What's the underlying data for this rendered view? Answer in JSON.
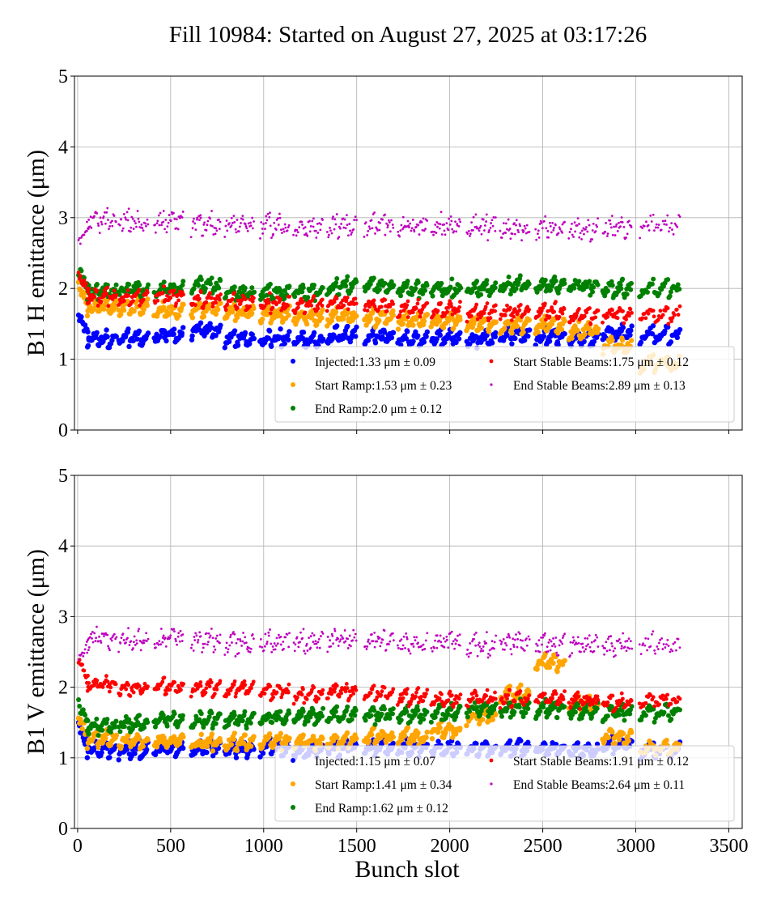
{
  "chart_data": {
    "title": "Fill 10984: Started on August 27, 2025 at 03:17:26",
    "xlabel": "Bunch slot",
    "xlim": [
      -17,
      3572
    ],
    "xticks": [
      "0",
      "500",
      "1000",
      "1500",
      "2000",
      "2500",
      "3000",
      "3500"
    ],
    "xtick_values": [
      0,
      500,
      1000,
      1500,
      2000,
      2500,
      3000,
      3500
    ],
    "grid": true,
    "train_centers": [
      130,
      300,
      490,
      690,
      870,
      1060,
      1240,
      1420,
      1620,
      1800,
      1980,
      2170,
      2350,
      2540,
      2720,
      2900,
      3130
    ],
    "panels": [
      {
        "type": "scatter",
        "ylabel": "B1 H emittance (μm)",
        "ylim": [
          0,
          5
        ],
        "yticks": [
          "0",
          "1",
          "2",
          "3",
          "4",
          "5"
        ],
        "legend_position": "lower-right",
        "series": [
          {
            "name": "Injected",
            "label": "Injected:1.33 μm ± 0.09",
            "color": "#0000ff",
            "values": [
              1.3,
              1.3,
              1.35,
              1.42,
              1.3,
              1.3,
              1.28,
              1.35,
              1.33,
              1.3,
              1.32,
              1.3,
              1.35,
              1.32,
              1.3,
              1.38,
              1.35
            ]
          },
          {
            "name": "Start Ramp",
            "label": "Start Ramp:1.53 μm ± 0.23",
            "color": "#ffa500",
            "values": [
              1.75,
              1.75,
              1.7,
              1.72,
              1.68,
              1.65,
              1.6,
              1.62,
              1.6,
              1.55,
              1.55,
              1.5,
              1.5,
              1.48,
              1.4,
              1.2,
              0.95
            ]
          },
          {
            "name": "End Ramp",
            "label": "End Ramp:2.0 μm ± 0.12",
            "color": "#008000",
            "values": [
              1.95,
              2.0,
              2.0,
              2.05,
              1.95,
              1.95,
              1.95,
              2.05,
              2.05,
              2.0,
              2.0,
              2.0,
              2.05,
              2.05,
              2.05,
              2.0,
              2.0
            ]
          },
          {
            "name": "Start Stable Beams",
            "label": "Start Stable Beams:1.75 μm ± 0.12",
            "color": "#ff0000",
            "values": [
              1.9,
              1.88,
              1.9,
              1.85,
              1.82,
              1.8,
              1.78,
              1.8,
              1.78,
              1.72,
              1.72,
              1.68,
              1.68,
              1.68,
              1.62,
              1.65,
              1.65
            ]
          },
          {
            "name": "End Stable Beams",
            "label": "End Stable Beams:2.89 μm ± 0.13",
            "color": "#bf00bf",
            "values": [
              2.95,
              2.95,
              2.95,
              2.92,
              2.92,
              2.9,
              2.85,
              2.9,
              2.9,
              2.9,
              2.9,
              2.88,
              2.85,
              2.85,
              2.85,
              2.85,
              2.9
            ]
          }
        ]
      },
      {
        "type": "scatter",
        "ylabel": "B1 V emittance (μm)",
        "ylim": [
          0,
          5
        ],
        "yticks": [
          "0",
          "1",
          "2",
          "3",
          "4",
          "5"
        ],
        "legend_position": "lower-right",
        "series": [
          {
            "name": "Injected",
            "label": "Injected:1.15 μm ± 0.07",
            "color": "#0000ff",
            "values": [
              1.13,
              1.12,
              1.15,
              1.15,
              1.13,
              1.15,
              1.12,
              1.15,
              1.15,
              1.15,
              1.15,
              1.15,
              1.15,
              1.15,
              1.12,
              1.2,
              1.12
            ]
          },
          {
            "name": "Start Ramp",
            "label": "Start Ramp:1.41 μm ± 0.34",
            "color": "#ffa500",
            "values": [
              1.28,
              1.25,
              1.25,
              1.22,
              1.22,
              1.25,
              1.22,
              1.25,
              1.3,
              1.3,
              1.4,
              1.6,
              1.9,
              2.35,
              1.75,
              1.3,
              1.15
            ]
          },
          {
            "name": "End Ramp",
            "label": "End Ramp:1.62 μm ± 0.12",
            "color": "#008000",
            "values": [
              1.45,
              1.5,
              1.55,
              1.55,
              1.55,
              1.58,
              1.6,
              1.62,
              1.62,
              1.62,
              1.65,
              1.7,
              1.7,
              1.7,
              1.68,
              1.65,
              1.65
            ]
          },
          {
            "name": "Start Stable Beams",
            "label": "Start Stable Beams:1.91 μm ± 0.12",
            "color": "#ff0000",
            "values": [
              2.05,
              2.0,
              2.02,
              2.0,
              1.98,
              1.95,
              1.9,
              1.95,
              1.92,
              1.88,
              1.85,
              1.85,
              1.85,
              1.85,
              1.82,
              1.8,
              1.82
            ]
          },
          {
            "name": "End Stable Beams",
            "label": "End Stable Beams:2.64 μm ± 0.11",
            "color": "#bf00bf",
            "values": [
              2.68,
              2.68,
              2.7,
              2.68,
              2.62,
              2.65,
              2.65,
              2.7,
              2.68,
              2.62,
              2.65,
              2.6,
              2.65,
              2.62,
              2.62,
              2.6,
              2.62
            ]
          }
        ]
      }
    ]
  }
}
